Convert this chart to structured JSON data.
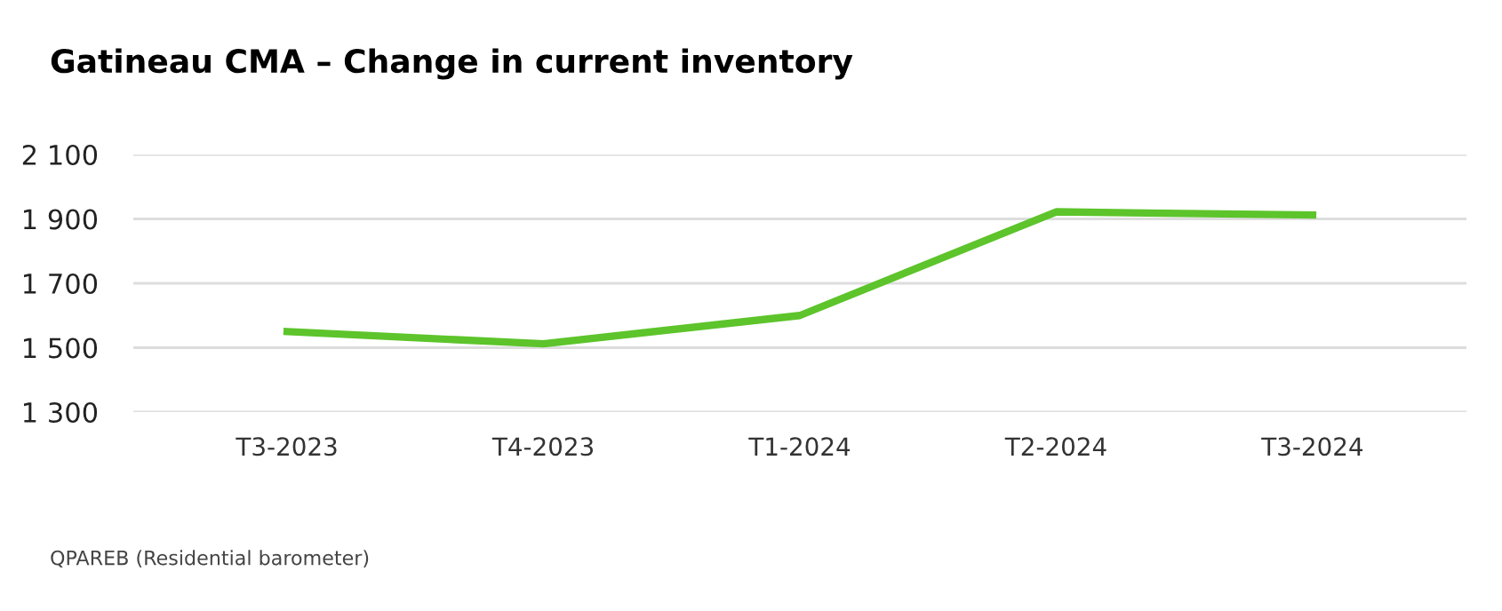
{
  "chart_data": {
    "type": "line",
    "title": "Gatineau CMA – Change in current inventory",
    "categories": [
      "T3-2023",
      "T4-2023",
      "T1-2024",
      "T2-2024",
      "T3-2024"
    ],
    "series": [
      {
        "color": "#5dc42b",
        "values": [
          1550,
          1512,
          1600,
          1922,
          1912
        ]
      }
    ],
    "ylim": [
      1300,
      2100
    ],
    "yticks": [
      {
        "value": 1300,
        "label": "1 300"
      },
      {
        "value": 1500,
        "label": "1 500"
      },
      {
        "value": 1700,
        "label": "1 700"
      },
      {
        "value": 1900,
        "label": "1 900"
      },
      {
        "value": 2100,
        "label": "2 100"
      }
    ],
    "grid": "y",
    "marker": "none",
    "line_style": "solid",
    "annotations": [
      "QPAREB (Residential barometer)"
    ]
  }
}
